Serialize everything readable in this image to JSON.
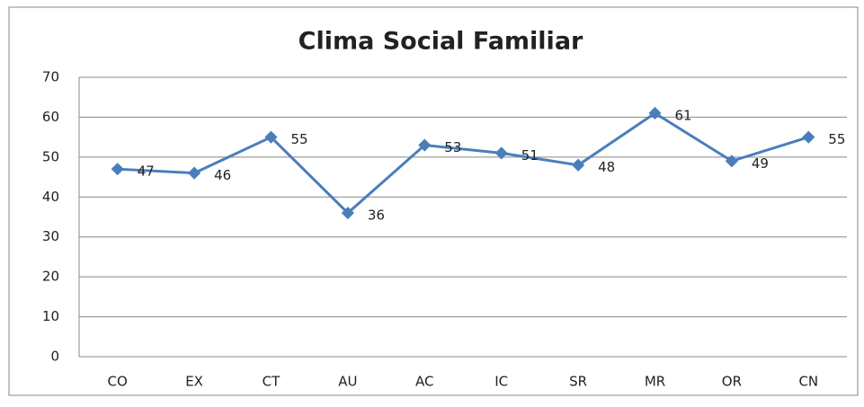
{
  "chart_data": {
    "type": "line",
    "title": "Clima Social Familiar",
    "categories": [
      "CO",
      "EX",
      "CT",
      "AU",
      "AC",
      "IC",
      "SR",
      "MR",
      "OR",
      "CN"
    ],
    "series": [
      {
        "name": "Clima Social Familiar",
        "color": "#4a7ebb",
        "values": [
          47,
          46,
          55,
          36,
          53,
          51,
          48,
          61,
          49,
          55
        ]
      }
    ],
    "ylim": [
      0,
      70
    ],
    "yticks": [
      0,
      10,
      20,
      30,
      40,
      50,
      60,
      70
    ],
    "grid": true,
    "data_labels": true
  }
}
